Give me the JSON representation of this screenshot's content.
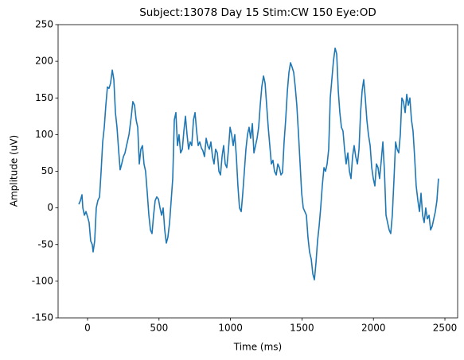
{
  "chart_data": {
    "type": "line",
    "title": "Subject:13078 Day 15 Stim:CW 150 Eye:OD",
    "x_label": "Time (ms)",
    "y_label": "Amplitude (uV)",
    "color": "#1f77b4",
    "xlim": [
      -206,
      2589
    ],
    "ylim": [
      -150,
      250
    ],
    "xticks": [
      0,
      500,
      1000,
      1500,
      2000,
      2500
    ],
    "yticks": [
      -150,
      -100,
      -50,
      0,
      50,
      100,
      150,
      200,
      250
    ],
    "x": [
      -61,
      -50,
      -39,
      -33,
      -22,
      -11,
      0,
      11,
      22,
      33,
      39,
      50,
      61,
      72,
      84,
      95,
      106,
      117,
      128,
      139,
      150,
      161,
      173,
      184,
      195,
      206,
      217,
      228,
      239,
      251,
      262,
      273,
      290,
      306,
      317,
      329,
      340,
      351,
      362,
      373,
      384,
      395,
      406,
      418,
      429,
      440,
      451,
      462,
      473,
      484,
      496,
      507,
      518,
      529,
      540,
      551,
      562,
      574,
      585,
      596,
      607,
      618,
      629,
      640,
      651,
      663,
      674,
      685,
      696,
      707,
      718,
      729,
      741,
      752,
      763,
      774,
      785,
      796,
      807,
      818,
      830,
      841,
      852,
      863,
      874,
      885,
      896,
      908,
      919,
      930,
      941,
      952,
      963,
      974,
      986,
      997,
      1008,
      1019,
      1030,
      1041,
      1052,
      1063,
      1075,
      1086,
      1097,
      1108,
      1119,
      1130,
      1141,
      1153,
      1164,
      1175,
      1186,
      1197,
      1208,
      1219,
      1231,
      1242,
      1253,
      1264,
      1275,
      1286,
      1297,
      1308,
      1320,
      1331,
      1342,
      1353,
      1364,
      1375,
      1386,
      1398,
      1409,
      1420,
      1431,
      1442,
      1453,
      1464,
      1476,
      1487,
      1498,
      1509,
      1520,
      1531,
      1542,
      1553,
      1565,
      1576,
      1587,
      1598,
      1609,
      1620,
      1631,
      1642,
      1654,
      1665,
      1676,
      1687,
      1698,
      1709,
      1720,
      1732,
      1743,
      1754,
      1765,
      1776,
      1787,
      1798,
      1809,
      1821,
      1832,
      1843,
      1854,
      1865,
      1876,
      1888,
      1899,
      1910,
      1921,
      1932,
      1943,
      1954,
      1965,
      1977,
      1988,
      1999,
      2010,
      2021,
      2032,
      2043,
      2055,
      2066,
      2077,
      2088,
      2099,
      2110,
      2121,
      2132,
      2144,
      2155,
      2166,
      2177,
      2188,
      2199,
      2210,
      2222,
      2233,
      2244,
      2255,
      2266,
      2277,
      2288,
      2299,
      2311,
      2322,
      2333,
      2344,
      2355,
      2366,
      2377,
      2389,
      2400,
      2411,
      2422,
      2433,
      2444,
      2455
    ],
    "values": [
      5,
      10,
      18,
      0,
      -10,
      -5,
      -12,
      -20,
      -45,
      -50,
      -60,
      -45,
      0,
      10,
      15,
      50,
      90,
      110,
      140,
      165,
      163,
      170,
      188,
      175,
      130,
      110,
      80,
      52,
      60,
      70,
      75,
      85,
      100,
      125,
      145,
      140,
      120,
      110,
      60,
      80,
      85,
      60,
      50,
      20,
      -10,
      -30,
      -35,
      -10,
      10,
      15,
      12,
      0,
      -10,
      0,
      -30,
      -48,
      -40,
      -20,
      10,
      40,
      120,
      130,
      85,
      100,
      75,
      80,
      105,
      125,
      100,
      80,
      90,
      85,
      120,
      130,
      105,
      85,
      90,
      82,
      78,
      70,
      95,
      85,
      80,
      90,
      70,
      60,
      80,
      75,
      50,
      45,
      70,
      85,
      60,
      55,
      80,
      110,
      100,
      85,
      100,
      70,
      30,
      0,
      -5,
      20,
      50,
      80,
      100,
      110,
      95,
      115,
      75,
      85,
      95,
      110,
      140,
      165,
      180,
      170,
      140,
      110,
      85,
      60,
      65,
      50,
      45,
      60,
      55,
      45,
      48,
      90,
      120,
      160,
      185,
      198,
      192,
      185,
      165,
      140,
      100,
      60,
      20,
      0,
      -5,
      -10,
      -40,
      -60,
      -70,
      -90,
      -98,
      -75,
      -45,
      -25,
      0,
      30,
      55,
      50,
      60,
      80,
      150,
      175,
      200,
      218,
      210,
      160,
      130,
      110,
      105,
      80,
      60,
      75,
      50,
      40,
      70,
      85,
      70,
      60,
      80,
      130,
      160,
      175,
      150,
      120,
      100,
      85,
      55,
      40,
      30,
      60,
      55,
      40,
      65,
      90,
      50,
      -10,
      -20,
      -30,
      -35,
      -10,
      40,
      90,
      80,
      75,
      100,
      150,
      145,
      130,
      155,
      140,
      150,
      120,
      105,
      70,
      30,
      10,
      -5,
      20,
      -10,
      -20,
      0,
      -15,
      -10,
      -30,
      -25,
      -15,
      -5,
      10,
      40
    ]
  }
}
